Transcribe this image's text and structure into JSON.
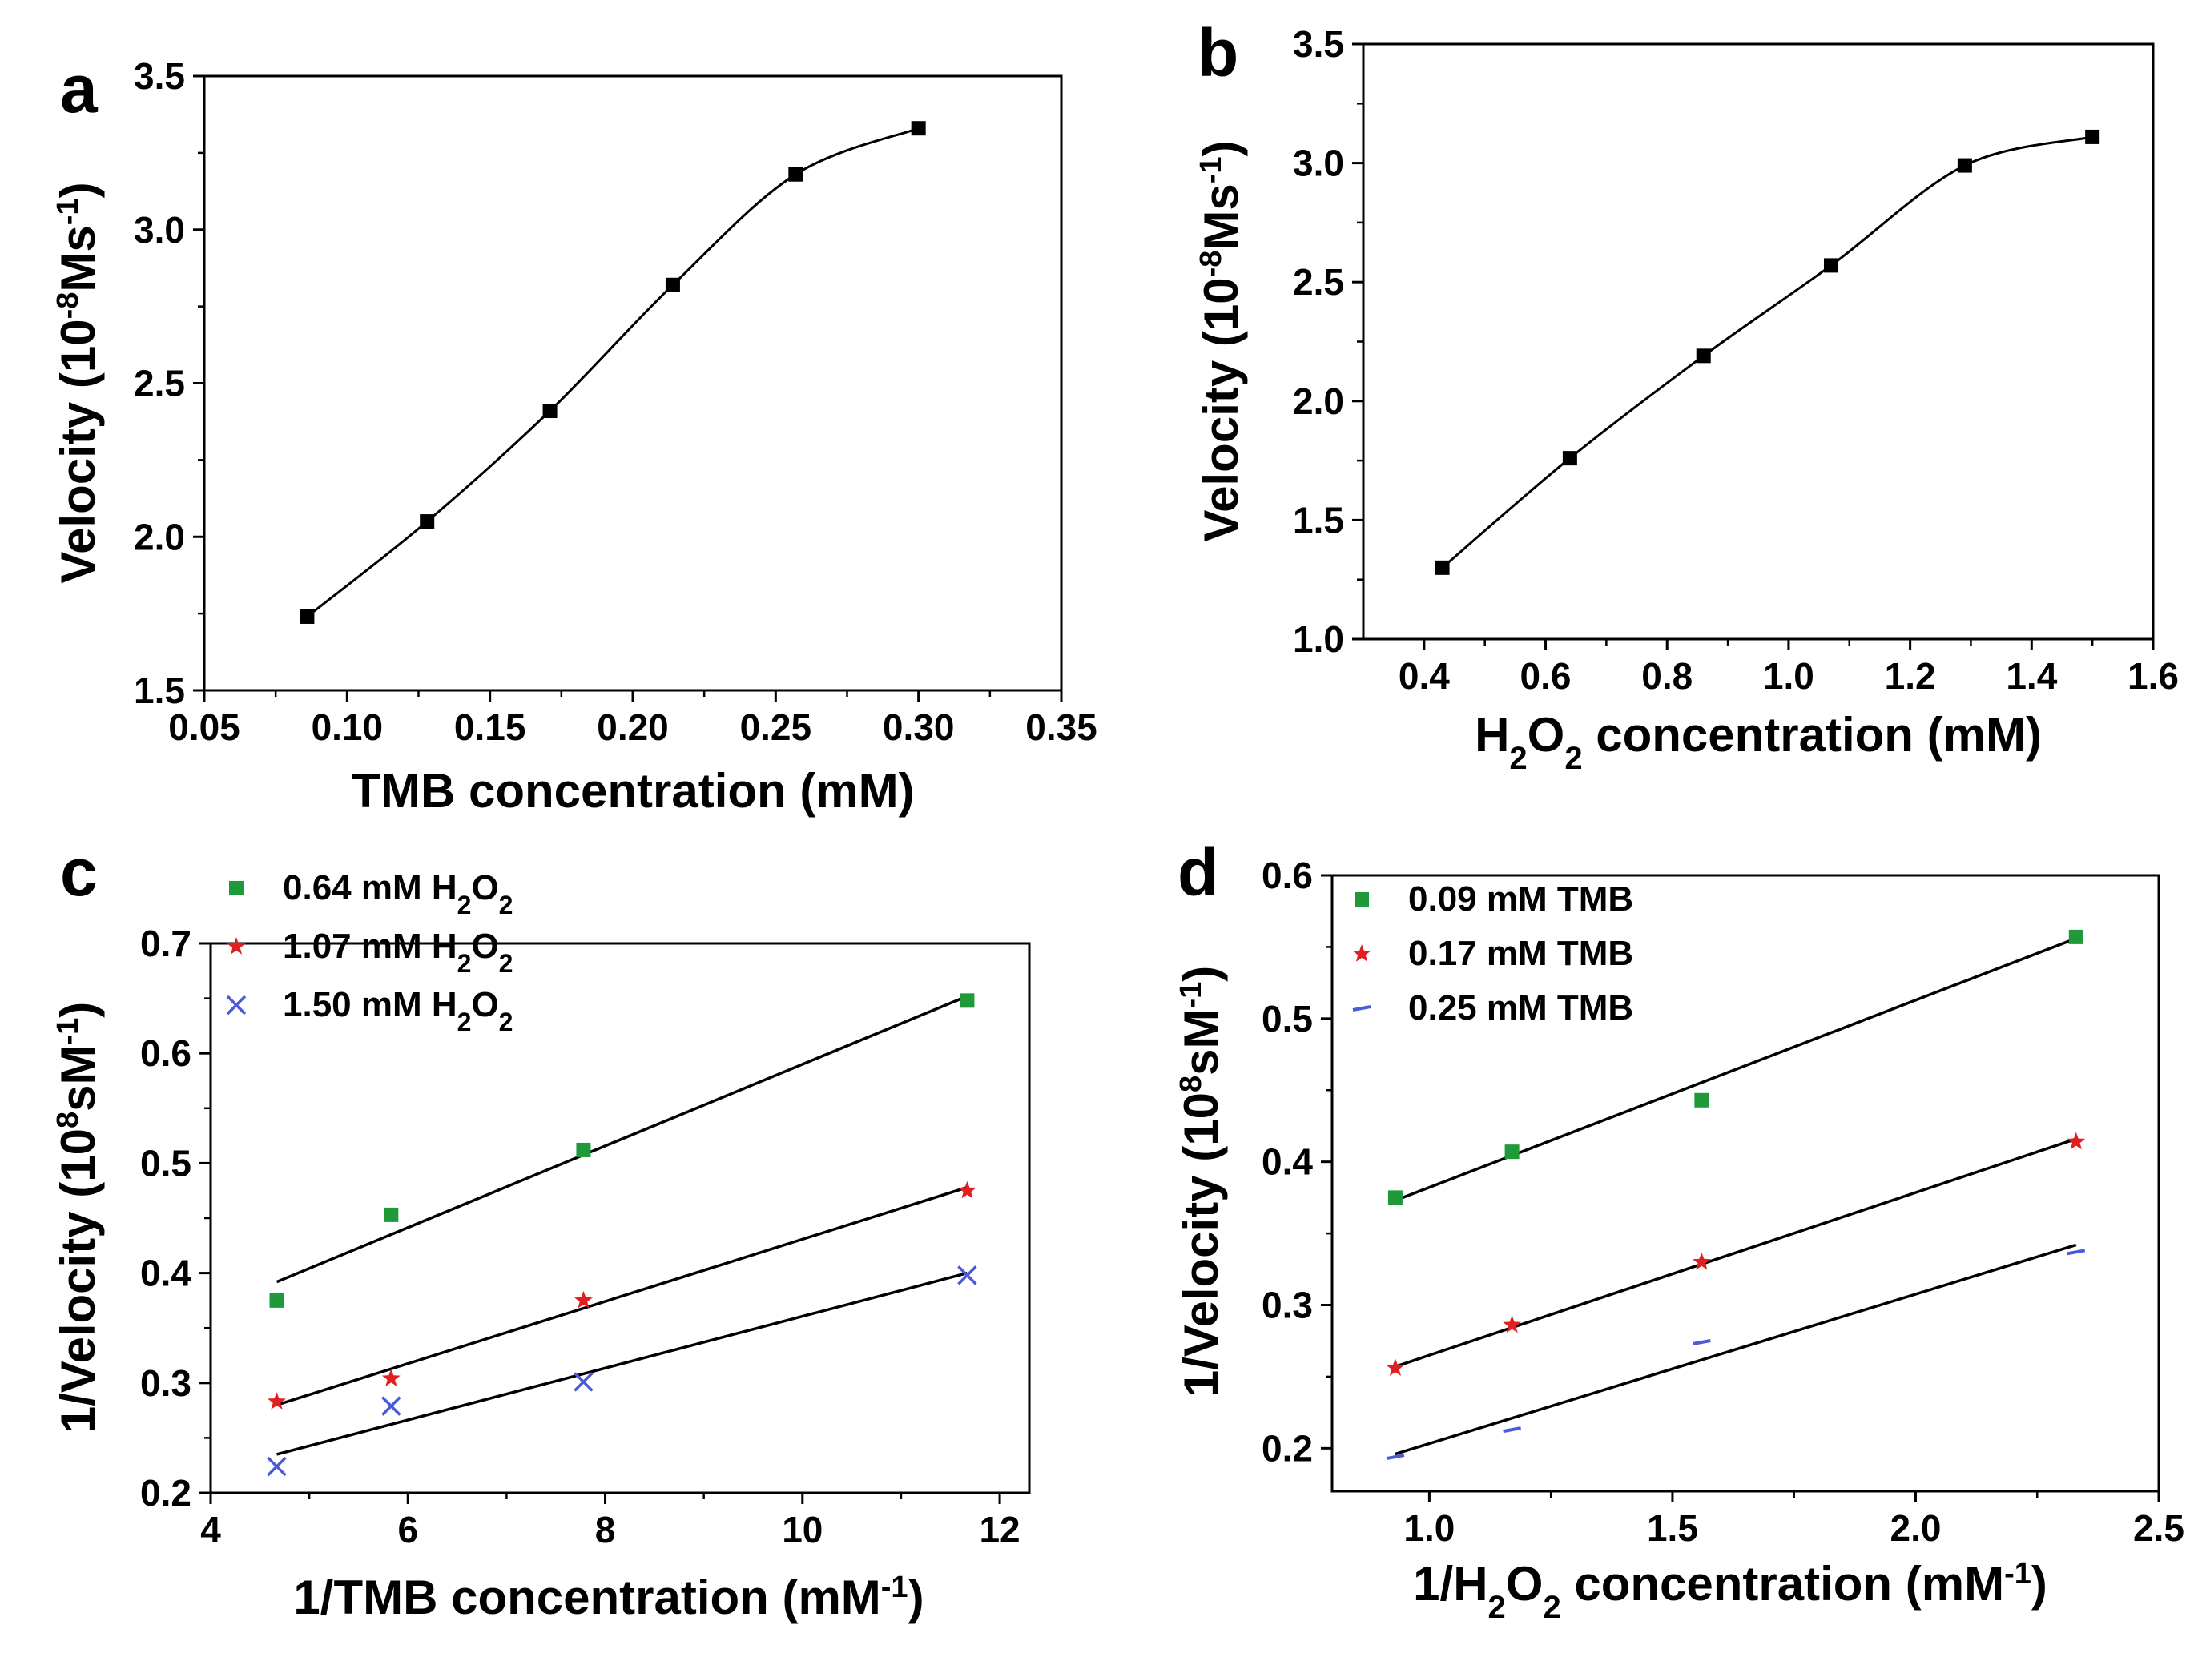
{
  "figure": {
    "colors": {
      "axis": "#000000",
      "green": "#1f9a3a",
      "red": "#e02020",
      "blue": "#4a5ad8",
      "black": "#000000"
    }
  },
  "chart_data": [
    {
      "id": "a",
      "panel_letter": "a",
      "type": "line",
      "xlabel": "TMB concentration (mM)",
      "ylabel_main": "Velocity (10",
      "ylabel_sup1": "-8",
      "ylabel_mid": "Ms",
      "ylabel_sup2": "-1",
      "ylabel_end": ")",
      "xlim": [
        0.05,
        0.35
      ],
      "ylim": [
        1.5,
        3.5
      ],
      "xticks": [
        0.05,
        0.1,
        0.15,
        0.2,
        0.25,
        0.3,
        0.35
      ],
      "xtick_labels": [
        "0.05",
        "0.10",
        "0.15",
        "0.20",
        "0.25",
        "0.30",
        "0.35"
      ],
      "yticks": [
        1.5,
        2.0,
        2.5,
        3.0,
        3.5
      ],
      "ytick_labels": [
        "1.5",
        "2.0",
        "2.5",
        "3.0",
        "3.5"
      ],
      "series": [
        {
          "name": "data",
          "marker": "square",
          "color": "#000000",
          "curve": "smooth",
          "x": [
            0.086,
            0.128,
            0.171,
            0.214,
            0.257,
            0.3
          ],
          "y": [
            1.74,
            2.05,
            2.41,
            2.82,
            3.18,
            3.33
          ]
        }
      ]
    },
    {
      "id": "b",
      "panel_letter": "b",
      "type": "line",
      "xlabel_pre": "H",
      "xlabel_sub1": "2",
      "xlabel_mid": "O",
      "xlabel_sub2": "2",
      "xlabel_post": " concentration (mM)",
      "ylabel_main": "Velocity (10",
      "ylabel_sup1": "-8",
      "ylabel_mid": "Ms",
      "ylabel_sup2": "-1",
      "ylabel_end": ")",
      "xlim": [
        0.3,
        1.6
      ],
      "ylim": [
        1.0,
        3.5
      ],
      "xticks": [
        0.4,
        0.6,
        0.8,
        1.0,
        1.2,
        1.4,
        1.6
      ],
      "xtick_labels": [
        "0.4",
        "0.6",
        "0.8",
        "1.0",
        "1.2",
        "1.4",
        "1.6"
      ],
      "yticks": [
        1.0,
        1.5,
        2.0,
        2.5,
        3.0,
        3.5
      ],
      "ytick_labels": [
        "1.0",
        "1.5",
        "2.0",
        "2.5",
        "3.0",
        "3.5"
      ],
      "series": [
        {
          "name": "data",
          "marker": "square",
          "color": "#000000",
          "curve": "smooth",
          "x": [
            0.43,
            0.64,
            0.86,
            1.07,
            1.29,
            1.5
          ],
          "y": [
            1.3,
            1.76,
            2.19,
            2.57,
            2.99,
            3.11
          ]
        }
      ]
    },
    {
      "id": "c",
      "panel_letter": "c",
      "type": "scatter",
      "xlabel": "1/TMB concentration (mM",
      "xlabel_sup": "-1",
      "xlabel_end": ")",
      "ylabel_main": "1/Velocity  (10",
      "ylabel_sup1": "8",
      "ylabel_mid": "sM",
      "ylabel_sup2": "-1",
      "ylabel_end": ")",
      "xlim": [
        4,
        12.3
      ],
      "ylim": [
        0.2,
        0.7
      ],
      "xticks": [
        4,
        6,
        8,
        10,
        12
      ],
      "xtick_labels": [
        "4",
        "6",
        "8",
        "10",
        "12"
      ],
      "yticks": [
        0.2,
        0.3,
        0.4,
        0.5,
        0.6,
        0.7
      ],
      "ytick_labels": [
        "0.2",
        "0.3",
        "0.4",
        "0.5",
        "0.6",
        "0.7"
      ],
      "legend": [
        "0.64 mM H2O2",
        "1.07 mM H2O2",
        "1.50 mM H2O2"
      ],
      "legend_prefix": [
        "0.64 mM H",
        "1.07 mM H",
        "1.50 mM H"
      ],
      "legend_sub": "2",
      "legend_o": "O",
      "series": [
        {
          "name": "0.64 mM H2O2",
          "marker": "square",
          "color": "#1f9a3a",
          "x": [
            4.67,
            5.83,
            7.78,
            11.67
          ],
          "y": [
            0.375,
            0.453,
            0.512,
            0.648
          ],
          "fit": [
            0.392,
            0.652
          ]
        },
        {
          "name": "1.07 mM H2O2",
          "marker": "star",
          "color": "#e02020",
          "x": [
            4.67,
            5.83,
            7.78,
            11.67
          ],
          "y": [
            0.283,
            0.304,
            0.375,
            0.475
          ],
          "fit": [
            0.28,
            0.478
          ]
        },
        {
          "name": "1.50 mM H2O2",
          "marker": "cross",
          "color": "#4a5ad8",
          "x": [
            4.67,
            5.83,
            7.78,
            11.67
          ],
          "y": [
            0.224,
            0.279,
            0.301,
            0.398
          ],
          "fit": [
            0.235,
            0.4
          ]
        }
      ]
    },
    {
      "id": "d",
      "panel_letter": "d",
      "type": "scatter",
      "xlabel_pre": "1/H",
      "xlabel_sub1": "2",
      "xlabel_mid": "O",
      "xlabel_sub2": "2",
      "xlabel_post": " concentration (mM",
      "xlabel_sup": "-1",
      "xlabel_end": ")",
      "ylabel_main": "1/Velocity (10",
      "ylabel_sup1": "8",
      "ylabel_mid": "sM",
      "ylabel_sup2": "-1",
      "ylabel_end": ")",
      "xlim": [
        0.8,
        2.5
      ],
      "ylim": [
        0.17,
        0.6
      ],
      "xticks": [
        1.0,
        1.5,
        2.0,
        2.5
      ],
      "xtick_labels": [
        "1.0",
        "1.5",
        "2.0",
        "2.5"
      ],
      "yticks": [
        0.2,
        0.3,
        0.4,
        0.5,
        0.6
      ],
      "ytick_labels": [
        "0.2",
        "0.3",
        "0.4",
        "0.5",
        "0.6"
      ],
      "legend": [
        "0.09 mM TMB",
        "0.17 mM TMB",
        "0.25 mM TMB"
      ],
      "series": [
        {
          "name": "0.09 mM TMB",
          "marker": "square",
          "color": "#1f9a3a",
          "x": [
            0.93,
            1.17,
            1.56,
            2.33
          ],
          "y": [
            0.375,
            0.407,
            0.443,
            0.557
          ],
          "fit": [
            0.373,
            0.556
          ]
        },
        {
          "name": "0.17 mM TMB",
          "marker": "star",
          "color": "#e02020",
          "x": [
            0.93,
            1.17,
            1.56,
            2.33
          ],
          "y": [
            0.256,
            0.286,
            0.33,
            0.414
          ],
          "fit": [
            0.257,
            0.416
          ]
        },
        {
          "name": "0.25 mM TMB",
          "marker": "dash",
          "color": "#4a5ad8",
          "x": [
            0.93,
            1.17,
            1.56,
            2.33
          ],
          "y": [
            0.194,
            0.213,
            0.274,
            0.337
          ],
          "fit": [
            0.196,
            0.342
          ]
        }
      ]
    }
  ]
}
